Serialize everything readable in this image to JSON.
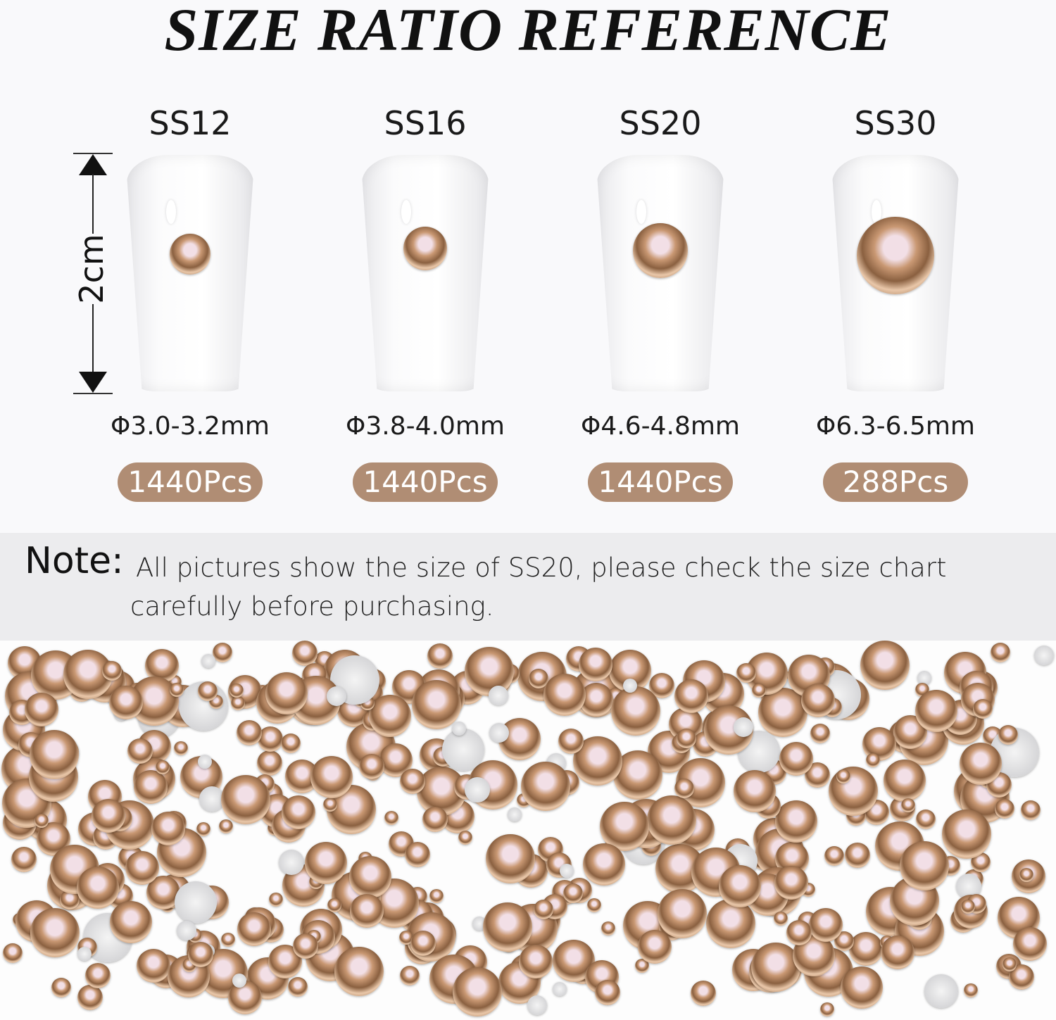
{
  "title": "SIZE RATIO REFERENCE",
  "dimension_label": "2cm",
  "sizes": [
    {
      "name": "SS12",
      "diameter": "Φ3.0-3.2mm",
      "count": "1440Pcs"
    },
    {
      "name": "SS16",
      "diameter": "Φ3.8-4.0mm",
      "count": "1440Pcs"
    },
    {
      "name": "SS20",
      "diameter": "Φ4.6-4.8mm",
      "count": "1440Pcs"
    },
    {
      "name": "SS30",
      "diameter": "Φ6.3-6.5mm",
      "count": "288Pcs"
    }
  ],
  "note": {
    "label": "Note:",
    "text": "All pictures show the size of SS20, please check the size chart carefully before purchasing."
  },
  "colors": {
    "badge": "#b08d74",
    "note_band": "#ececee",
    "gem": "#c99873"
  }
}
